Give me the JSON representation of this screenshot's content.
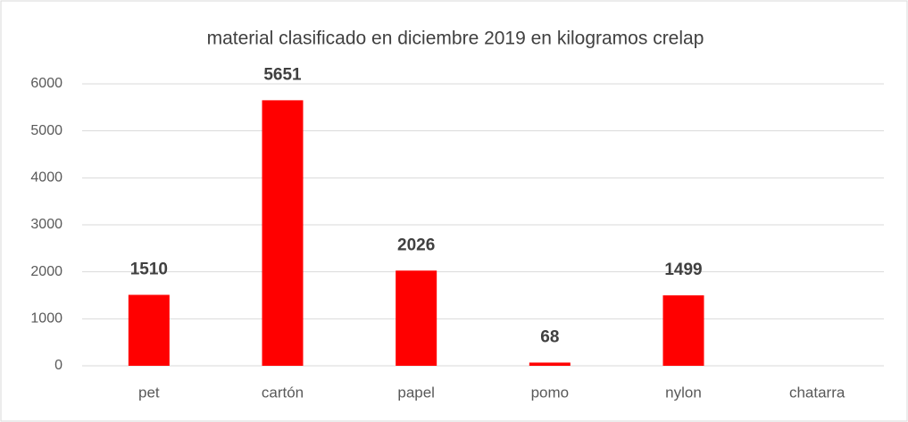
{
  "chart_data": {
    "type": "bar",
    "title": "material clasificado en diciembre 2019 en kilogramos crelap",
    "categories": [
      "pet",
      "cartón",
      "papel",
      "pomo",
      "nylon",
      "chatarra"
    ],
    "values": [
      1510,
      5651,
      2026,
      68,
      1499,
      null
    ],
    "color": "#ff0000",
    "ylim": [
      0,
      6000
    ],
    "yticks": [
      0,
      1000,
      2000,
      3000,
      4000,
      5000,
      6000
    ],
    "grid": true
  }
}
